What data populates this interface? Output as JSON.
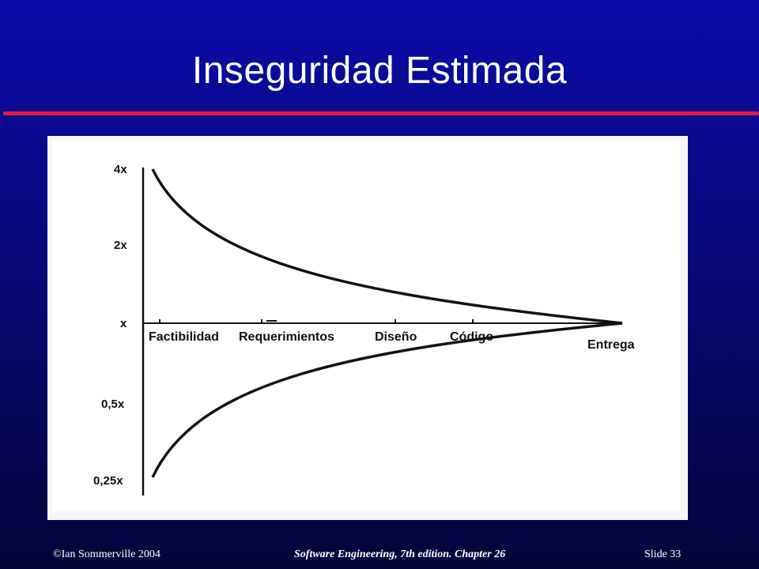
{
  "slide": {
    "title": "Inseguridad Estimada"
  },
  "footer": {
    "copyright": "©Ian Sommerville 2004",
    "book": "Software Engineering, 7th edition. Chapter 26",
    "slide_label": "Slide  33"
  },
  "colors": {
    "background_top": "#0b0ba8",
    "background_bottom": "#04043a",
    "title_rule": "#e8183a",
    "figure_background": "#ffffff"
  },
  "figure": {
    "y_ticks": [
      "4x",
      "2x",
      "x",
      "0,5x",
      "0,25x"
    ],
    "stages": [
      "Factibilidad",
      "Requerimientos",
      "Diseño",
      "Código",
      "Entrega"
    ]
  }
}
